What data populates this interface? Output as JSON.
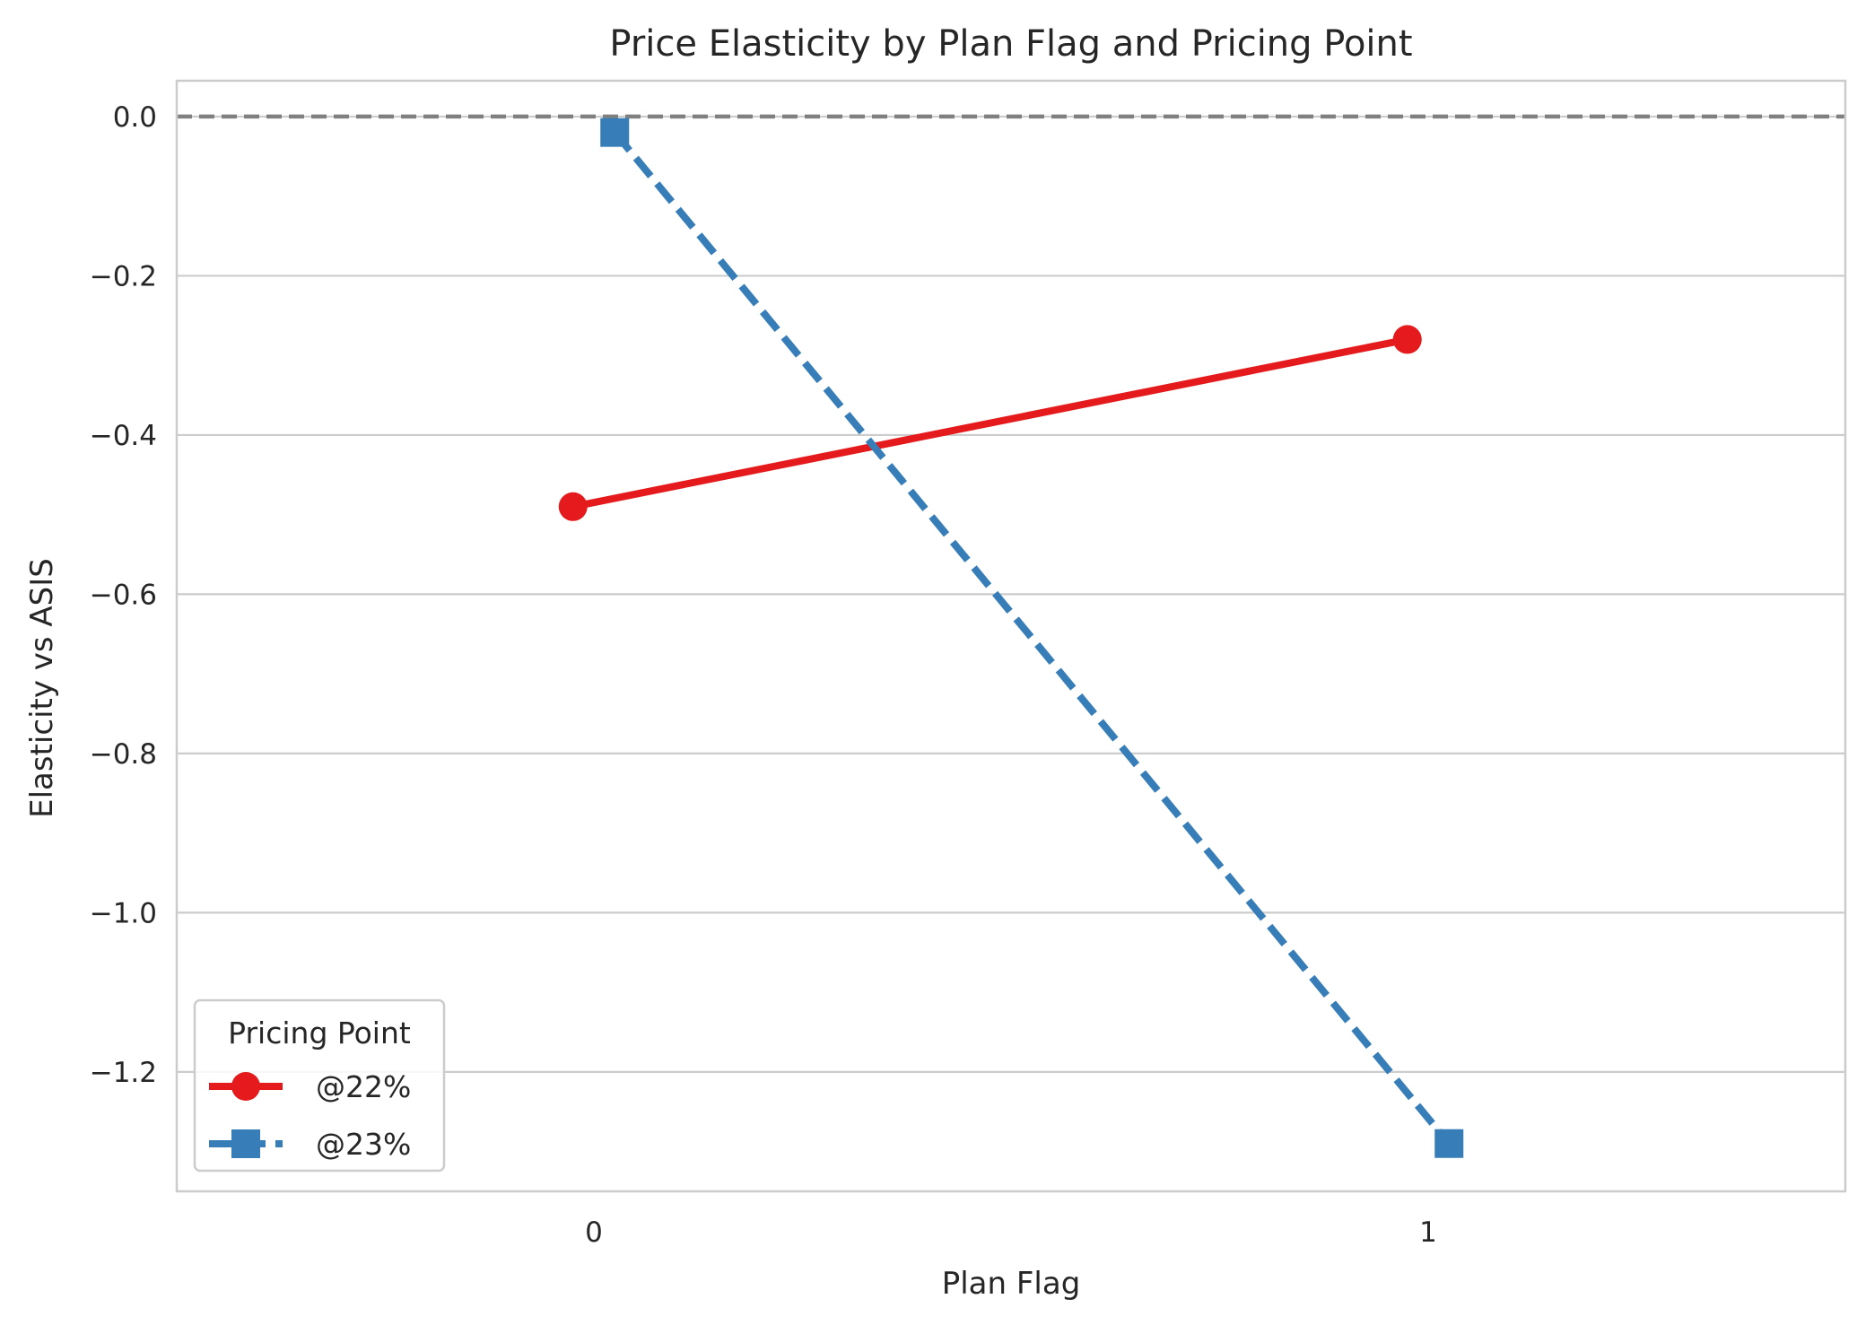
{
  "chart_data": {
    "type": "line",
    "title": "Price Elasticity by Plan Flag and Pricing Point",
    "xlabel": "Plan Flag",
    "ylabel": "Elasticity vs ASIS",
    "categories": [
      "0",
      "1"
    ],
    "x_dodge": [
      -0.025,
      0.025
    ],
    "xlim": [
      -0.5,
      1.5
    ],
    "ylim": [
      -1.35,
      0.045
    ],
    "yticks": [
      0.0,
      -0.2,
      -0.4,
      -0.6,
      -0.8,
      -1.0,
      -1.2
    ],
    "ytick_labels": [
      "0.0",
      "−0.2",
      "−0.4",
      "−0.6",
      "−0.8",
      "−1.0",
      "−1.2"
    ],
    "grid": "horizontal",
    "reference_line": {
      "y": 0.0,
      "style": "dashed",
      "color": "#808080"
    },
    "legend": {
      "title": "Pricing Point",
      "placement": "lower-left"
    },
    "series": [
      {
        "name": "@22%",
        "values": [
          -0.49,
          -0.28
        ],
        "color": "#e41a1c",
        "marker": "circle",
        "linestyle": "solid"
      },
      {
        "name": "@23%",
        "values": [
          -0.02,
          -1.29
        ],
        "color": "#377eb8",
        "marker": "square",
        "linestyle": "dashed"
      }
    ]
  }
}
